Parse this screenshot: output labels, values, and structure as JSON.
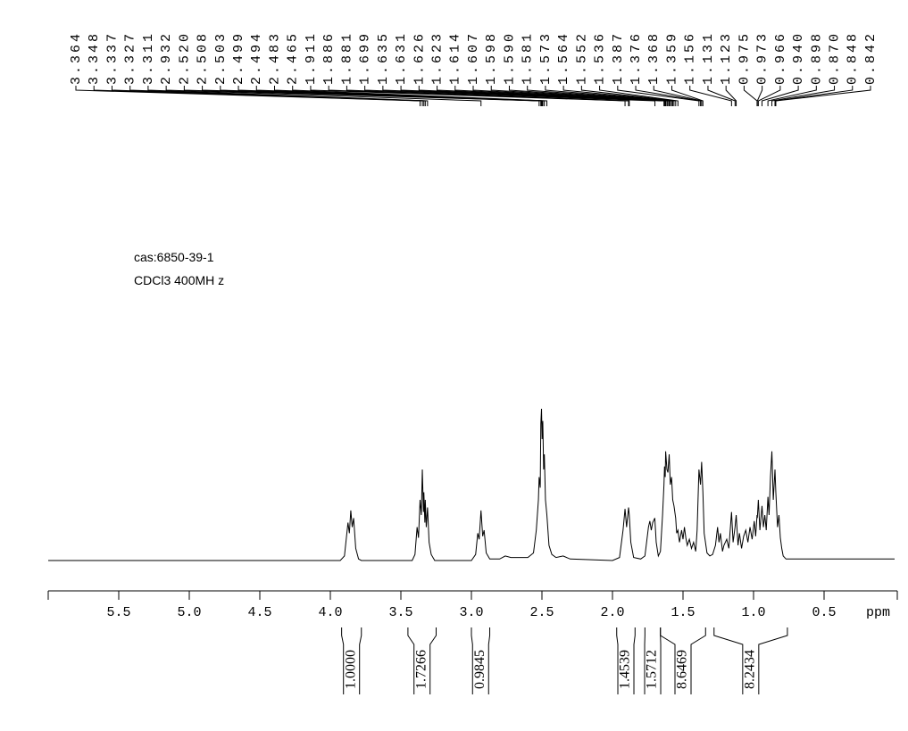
{
  "chart_data": {
    "type": "nmr",
    "annotations": [
      "cas:6850-39-1",
      "CDCl3 400MH z"
    ],
    "xlabel": "ppm",
    "color": "#000000",
    "xlim": [
      6.0,
      0.0
    ],
    "xticks": [
      5.5,
      {
        "value": 5,
        "label": "5.0"
      },
      4.5,
      {
        "value": 4,
        "label": "4.0"
      },
      3.5,
      {
        "value": 3,
        "label": "3.0"
      },
      2.5,
      {
        "value": 2,
        "label": "2.0"
      },
      1.5,
      {
        "value": 1,
        "label": "1.0"
      },
      0.5
    ],
    "ylim": [
      0,
      100
    ],
    "peaks": [
      3.364,
      3.348,
      3.337,
      3.327,
      3.311,
      2.932,
      {
        "value": 2.52,
        "label": "2.520"
      },
      2.508,
      2.503,
      2.499,
      2.494,
      2.483,
      2.465,
      1.911,
      1.886,
      1.881,
      1.699,
      1.635,
      1.631,
      1.626,
      1.623,
      1.614,
      1.607,
      1.598,
      {
        "value": 1.59,
        "label": "1.590"
      },
      1.581,
      1.573,
      1.564,
      1.552,
      1.536,
      1.387,
      1.376,
      1.368,
      1.359,
      1.156,
      1.131,
      1.123,
      0.975,
      0.973,
      0.966,
      {
        "value": 0.94,
        "label": "0.940"
      },
      0.898,
      {
        "value": 0.87,
        "label": "0.870"
      },
      0.848,
      0.842
    ],
    "integrals": {
      "ranges": [
        [
          3.92,
          3.78
        ],
        [
          3.45,
          3.25
        ],
        [
          3.0,
          2.87
        ],
        [
          1.97,
          1.84
        ],
        [
          1.77,
          1.66
        ],
        [
          1.66,
          1.34
        ],
        [
          1.28,
          0.76
        ]
      ],
      "values": [
        1,
        1.7266,
        0.9845,
        1.4539,
        1.5712,
        8.6469,
        8.2434
      ],
      "value_labels": [
        "1.0000",
        "1.7266",
        "0.9845",
        "1.4539",
        "1.5712",
        "8.6469",
        "8.2434"
      ]
    },
    "spectrum": {
      "x": [
        6.0,
        3.93,
        3.9,
        3.875,
        3.865,
        3.855,
        3.845,
        3.835,
        3.82,
        3.8,
        3.78,
        3.42,
        3.4,
        3.385,
        3.375,
        3.364,
        3.355,
        3.348,
        3.34,
        3.337,
        3.33,
        3.327,
        3.32,
        3.311,
        3.3,
        3.285,
        3.26,
        3.0,
        2.97,
        2.955,
        2.945,
        2.932,
        2.92,
        2.91,
        2.895,
        2.87,
        2.8,
        2.76,
        2.72,
        2.6,
        2.56,
        2.54,
        2.525,
        2.52,
        2.512,
        2.508,
        2.503,
        2.499,
        2.494,
        2.488,
        2.483,
        2.475,
        2.465,
        2.45,
        2.43,
        2.4,
        2.35,
        2.3,
        2.0,
        1.95,
        1.925,
        1.911,
        1.9,
        1.886,
        1.881,
        1.87,
        1.85,
        1.8,
        1.77,
        1.745,
        1.735,
        1.725,
        1.715,
        1.7,
        1.69,
        1.675,
        1.66,
        1.645,
        1.635,
        1.631,
        1.626,
        1.623,
        1.614,
        1.607,
        1.598,
        1.59,
        1.581,
        1.573,
        1.564,
        1.552,
        1.545,
        1.536,
        1.525,
        1.51,
        1.5,
        1.49,
        1.48,
        1.47,
        1.455,
        1.44,
        1.425,
        1.41,
        1.4,
        1.387,
        1.376,
        1.368,
        1.359,
        1.35,
        1.33,
        1.31,
        1.29,
        1.27,
        1.255,
        1.245,
        1.235,
        1.22,
        1.21,
        1.19,
        1.175,
        1.156,
        1.145,
        1.131,
        1.123,
        1.11,
        1.1,
        1.085,
        1.07,
        1.055,
        1.04,
        1.025,
        1.01,
        0.995,
        0.985,
        0.975,
        0.973,
        0.966,
        0.955,
        0.94,
        0.93,
        0.92,
        0.91,
        0.898,
        0.89,
        0.88,
        0.87,
        0.86,
        0.848,
        0.842,
        0.83,
        0.82,
        0.81,
        0.8,
        0.79,
        0.77,
        0.0
      ],
      "values": [
        0,
        0,
        3,
        25,
        18,
        33,
        22,
        28,
        8,
        1,
        0,
        0,
        4,
        22,
        15,
        40,
        30,
        60,
        32,
        45,
        25,
        40,
        22,
        35,
        12,
        4,
        0,
        0,
        4,
        18,
        14,
        33,
        16,
        20,
        5,
        1,
        1,
        3,
        2,
        2,
        5,
        20,
        40,
        55,
        48,
        90,
        100,
        80,
        92,
        60,
        70,
        40,
        30,
        10,
        4,
        2,
        3,
        1,
        0,
        2,
        20,
        34,
        22,
        35,
        30,
        12,
        2,
        1,
        3,
        22,
        26,
        20,
        25,
        28,
        12,
        3,
        6,
        30,
        50,
        62,
        55,
        72,
        60,
        58,
        70,
        50,
        55,
        40,
        36,
        28,
        18,
        20,
        12,
        20,
        14,
        22,
        15,
        10,
        14,
        8,
        12,
        6,
        20,
        60,
        50,
        65,
        45,
        18,
        5,
        3,
        4,
        10,
        22,
        12,
        18,
        6,
        10,
        14,
        8,
        32,
        12,
        22,
        30,
        10,
        18,
        8,
        16,
        20,
        12,
        22,
        14,
        26,
        16,
        30,
        28,
        40,
        20,
        36,
        22,
        30,
        20,
        42,
        30,
        55,
        72,
        40,
        60,
        45,
        22,
        30,
        15,
        8,
        3,
        1,
        1
      ]
    }
  }
}
